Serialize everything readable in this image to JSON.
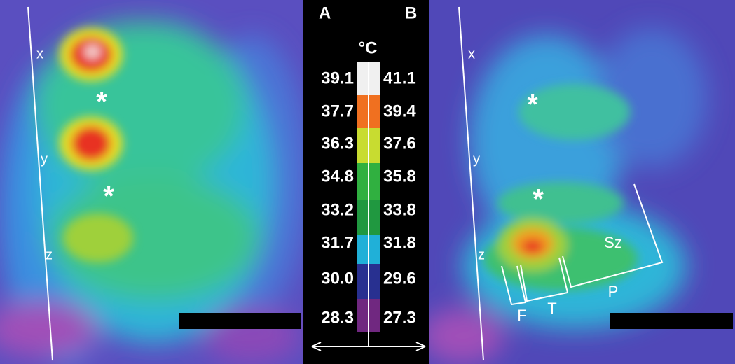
{
  "panel_a": {
    "label": "A",
    "markers": [
      "x",
      "*",
      "y",
      "*",
      "z"
    ]
  },
  "panel_b": {
    "label": "B",
    "markers": [
      "x",
      "*",
      "y",
      "*",
      "z"
    ],
    "zones": [
      "F",
      "T",
      "Sz",
      "P"
    ]
  },
  "scale": {
    "unit": "°C",
    "left": [
      "39.1",
      "37.7",
      "36.3",
      "34.8",
      "33.2",
      "31.7",
      "30.0",
      "28.3"
    ],
    "right": [
      "41.1",
      "39.4",
      "37.6",
      "35.8",
      "33.8",
      "31.8",
      "29.6",
      "27.3"
    ]
  }
}
